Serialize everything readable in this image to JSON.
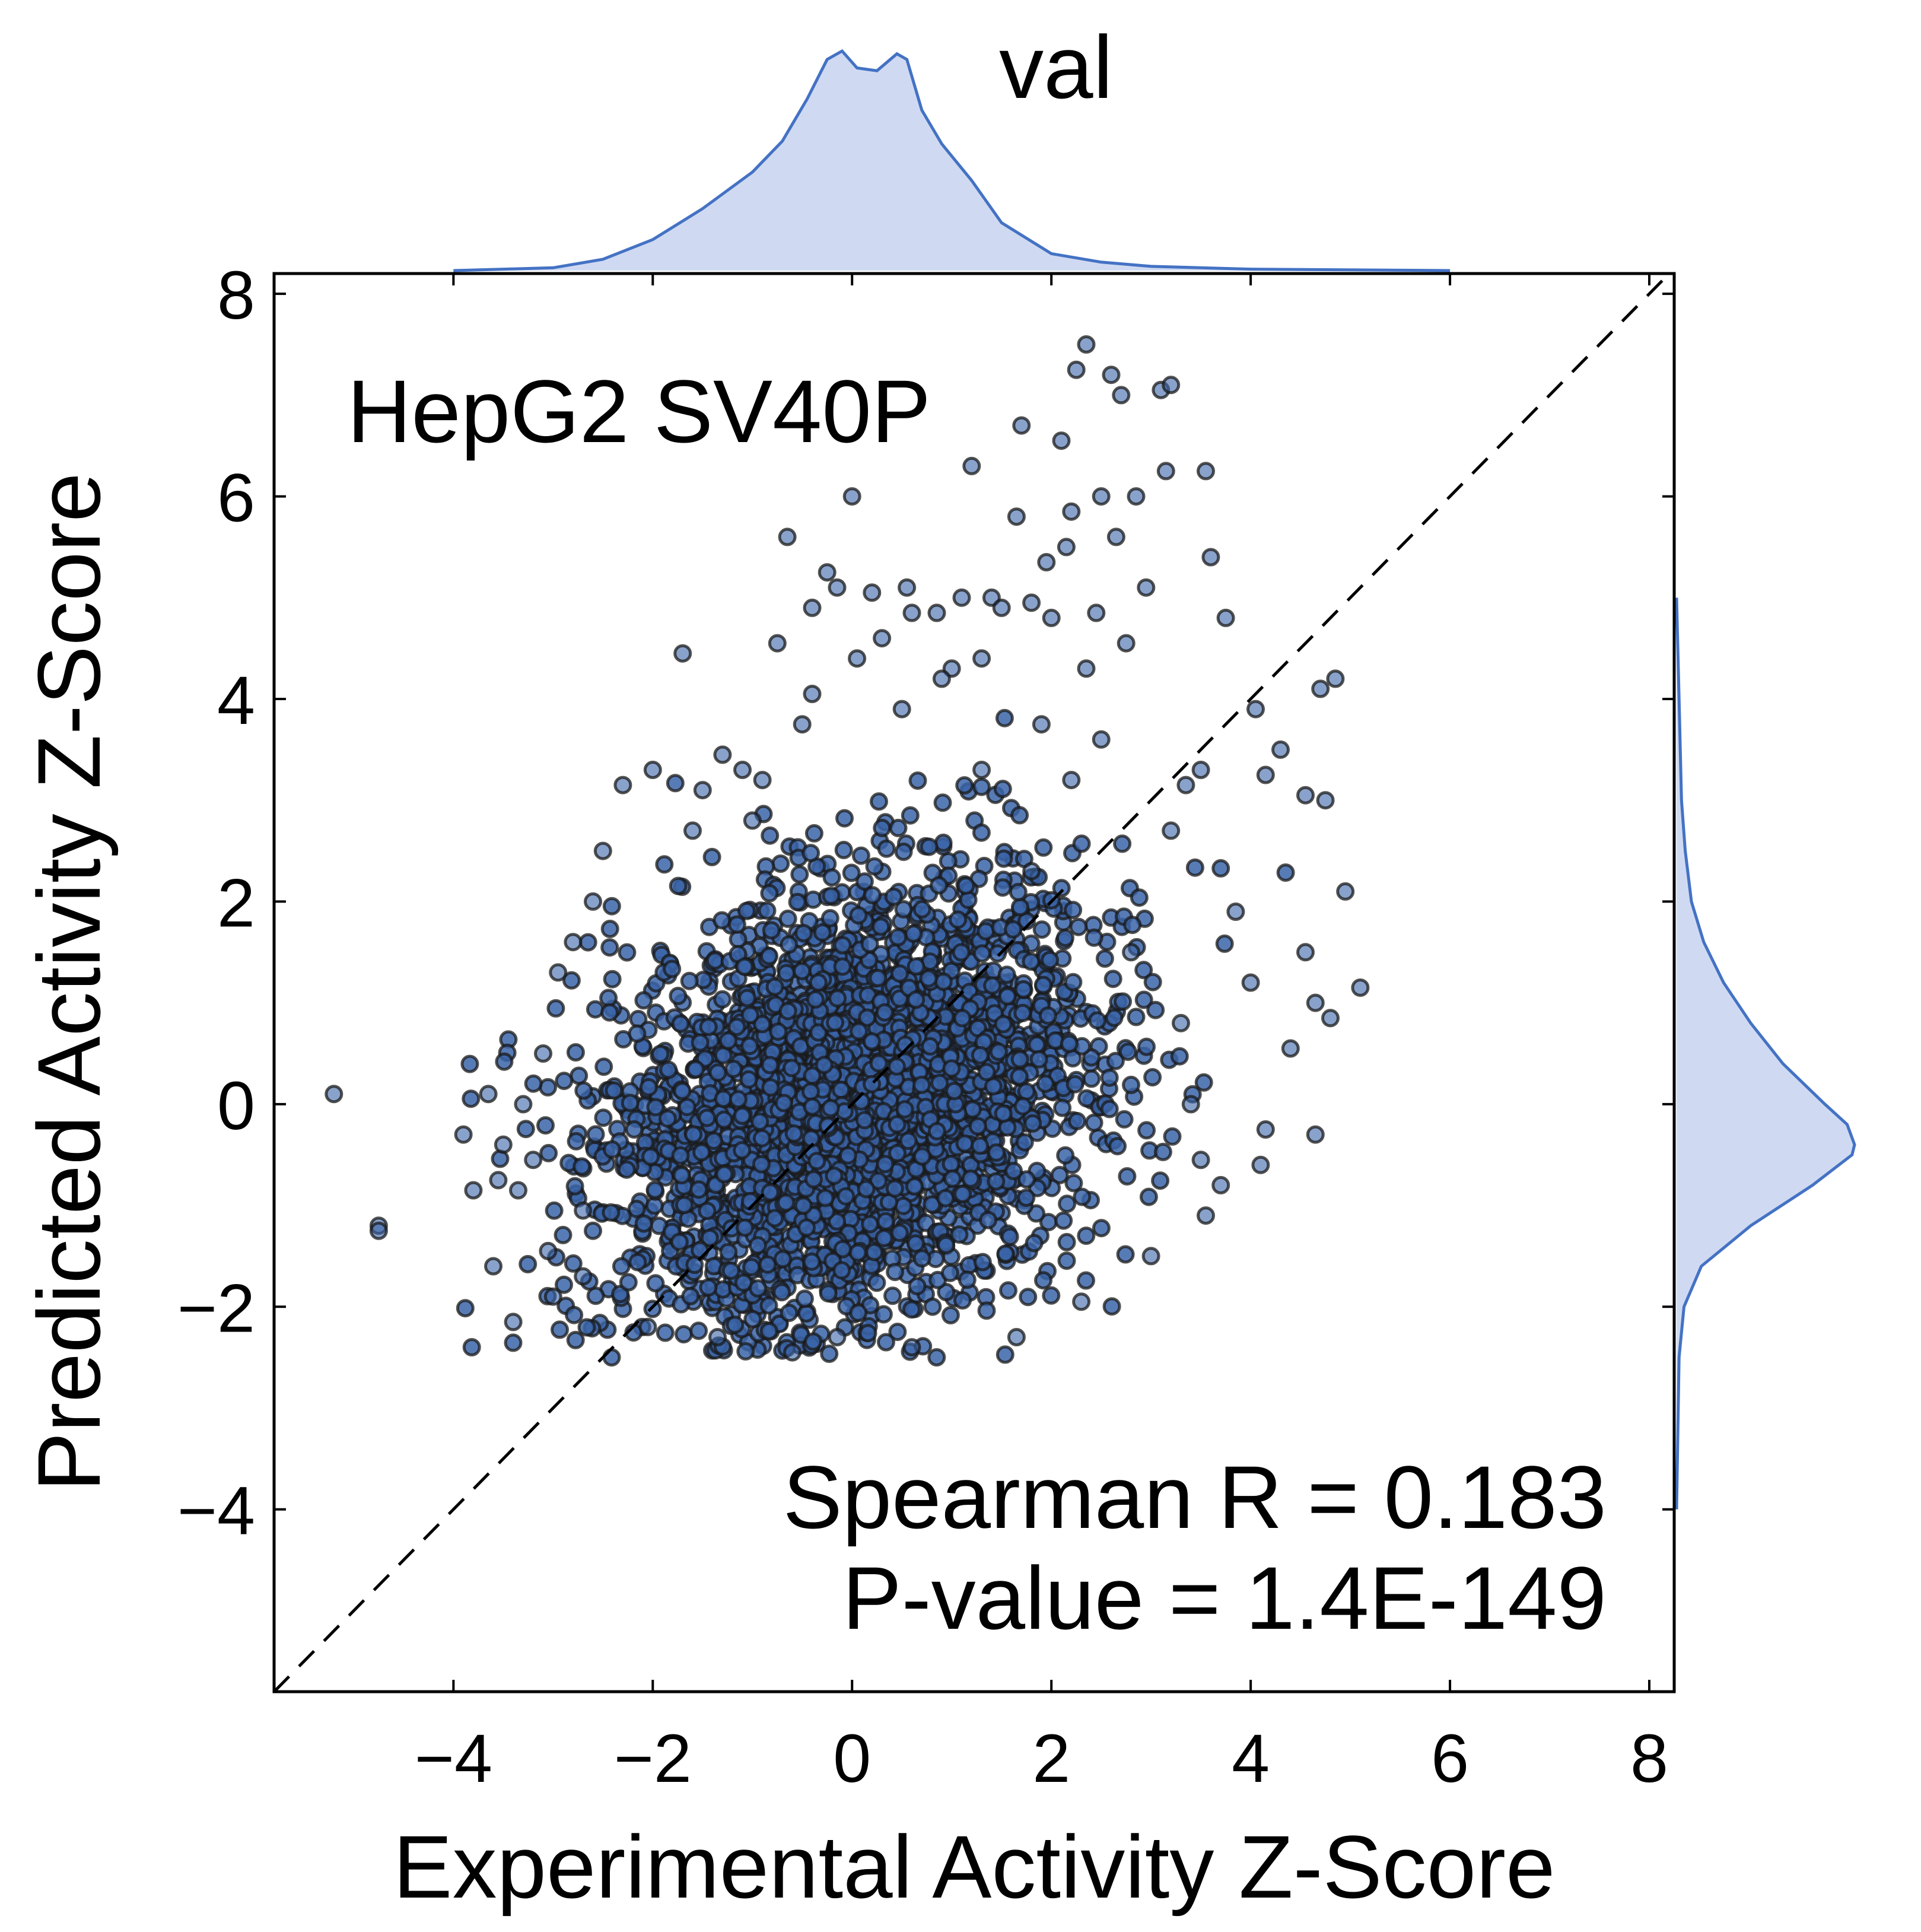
{
  "chart_data": {
    "type": "scatter",
    "title": "val",
    "annotation": "HepG2 SV40P",
    "stats": {
      "line1": "Spearman R = 0.183",
      "line2": "P-value = 1.4E-149"
    },
    "xlabel": "Experimental Activity Z-Score",
    "ylabel": "Predicted Activity Z-Score",
    "xlim": [
      -5.8,
      8.25
    ],
    "ylim": [
      -5.8,
      8.2
    ],
    "xticks": [
      -4,
      -2,
      0,
      2,
      4,
      6,
      8
    ],
    "yticks": [
      -4,
      -2,
      0,
      2,
      4,
      6,
      8
    ],
    "xtick_labels": [
      "−4",
      "−2",
      "0",
      "2",
      "4",
      "6",
      "8"
    ],
    "ytick_labels": [
      "−4",
      "−2",
      "0",
      "2",
      "4",
      "6",
      "8"
    ],
    "identity_line": true,
    "point_color": "#3a64a8",
    "point_edge_color": "#1a1a1a",
    "kde_fill_color": "#cfdaf2",
    "kde_line_color": "#4472c4",
    "x_marginal_kde": {
      "x": [
        -4.0,
        -3.0,
        -2.5,
        -2.0,
        -1.5,
        -1.0,
        -0.7,
        -0.45,
        -0.25,
        -0.1,
        0.05,
        0.25,
        0.45,
        0.55,
        0.7,
        0.9,
        1.2,
        1.5,
        2.0,
        2.5,
        3.0,
        4.0,
        6.0
      ],
      "density": [
        0.0,
        0.01,
        0.04,
        0.11,
        0.22,
        0.35,
        0.46,
        0.61,
        0.75,
        0.78,
        0.72,
        0.71,
        0.77,
        0.75,
        0.57,
        0.45,
        0.32,
        0.17,
        0.06,
        0.03,
        0.015,
        0.005,
        0.0
      ]
    },
    "y_marginal_kde": {
      "y": [
        -4.0,
        -2.5,
        -2.0,
        -1.6,
        -1.2,
        -0.8,
        -0.5,
        -0.4,
        -0.2,
        0.0,
        0.4,
        0.8,
        1.2,
        1.6,
        2.0,
        2.5,
        3.0,
        4.0,
        5.0
      ],
      "density": [
        0.0,
        0.01,
        0.03,
        0.1,
        0.3,
        0.55,
        0.71,
        0.72,
        0.69,
        0.6,
        0.43,
        0.3,
        0.19,
        0.11,
        0.06,
        0.035,
        0.02,
        0.01,
        0.0
      ]
    },
    "points": [
      [
        -5.2,
        0.1
      ],
      [
        -4.75,
        -1.2
      ],
      [
        -4.75,
        -1.25
      ],
      [
        -3.9,
        -0.3
      ],
      [
        -3.8,
        -0.85
      ],
      [
        -3.65,
        0.1
      ],
      [
        -3.6,
        -1.6
      ],
      [
        -3.55,
        -0.75
      ],
      [
        -3.4,
        -2.15
      ],
      [
        -3.3,
        0.0
      ],
      [
        -3.2,
        -0.55
      ],
      [
        -3.1,
        0.5
      ],
      [
        -3.0,
        -1.9
      ],
      [
        -2.95,
        1.3
      ],
      [
        -2.8,
        1.6
      ],
      [
        -2.7,
        -1.05
      ],
      [
        -2.6,
        2.0
      ],
      [
        -2.5,
        2.5
      ],
      [
        -2.3,
        3.15
      ],
      [
        -2.0,
        3.3
      ],
      [
        -1.7,
        4.45
      ],
      [
        -1.6,
        2.7
      ],
      [
        -1.5,
        3.1
      ],
      [
        -1.3,
        3.45
      ],
      [
        -1.1,
        3.3
      ],
      [
        -0.9,
        3.2
      ],
      [
        -0.65,
        5.6
      ],
      [
        -0.5,
        3.75
      ],
      [
        -0.4,
        4.05
      ],
      [
        -0.25,
        5.25
      ],
      [
        -0.15,
        5.1
      ],
      [
        0.0,
        6.0
      ],
      [
        0.05,
        4.4
      ],
      [
        0.3,
        4.6
      ],
      [
        0.5,
        3.9
      ],
      [
        0.55,
        5.1
      ],
      [
        0.6,
        4.85
      ],
      [
        0.85,
        4.85
      ],
      [
        1.0,
        4.3
      ],
      [
        1.1,
        5.0
      ],
      [
        1.2,
        6.3
      ],
      [
        1.3,
        4.4
      ],
      [
        1.4,
        5.0
      ],
      [
        1.5,
        4.9
      ],
      [
        1.65,
        5.8
      ],
      [
        1.7,
        6.7
      ],
      [
        1.8,
        4.95
      ],
      [
        1.9,
        3.75
      ],
      [
        2.0,
        4.8
      ],
      [
        2.1,
        6.55
      ],
      [
        2.15,
        5.5
      ],
      [
        2.2,
        5.85
      ],
      [
        2.25,
        7.25
      ],
      [
        2.35,
        7.5
      ],
      [
        2.35,
        4.3
      ],
      [
        2.5,
        6.0
      ],
      [
        2.6,
        7.2
      ],
      [
        2.65,
        5.6
      ],
      [
        2.7,
        7.0
      ],
      [
        2.75,
        4.55
      ],
      [
        2.85,
        6.0
      ],
      [
        2.95,
        5.1
      ],
      [
        3.1,
        7.05
      ],
      [
        3.15,
        6.25
      ],
      [
        3.2,
        7.1
      ],
      [
        3.35,
        3.15
      ],
      [
        3.5,
        3.3
      ],
      [
        3.55,
        6.25
      ],
      [
        3.6,
        5.4
      ],
      [
        3.75,
        4.8
      ],
      [
        3.85,
        1.9
      ],
      [
        4.0,
        1.2
      ],
      [
        4.05,
        3.9
      ],
      [
        4.15,
        3.25
      ],
      [
        4.3,
        3.5
      ],
      [
        4.4,
        0.55
      ],
      [
        4.55,
        1.5
      ],
      [
        4.55,
        3.05
      ],
      [
        4.65,
        1.0
      ],
      [
        4.7,
        4.1
      ],
      [
        4.75,
        3.0
      ],
      [
        4.8,
        0.85
      ],
      [
        4.85,
        4.2
      ],
      [
        4.95,
        2.1
      ],
      [
        5.1,
        1.15
      ],
      [
        4.65,
        -0.3
      ],
      [
        4.15,
        -0.25
      ],
      [
        4.1,
        -0.6
      ],
      [
        3.5,
        -0.55
      ],
      [
        3.55,
        -1.1
      ],
      [
        3.0,
        -1.5
      ],
      [
        2.3,
        -1.95
      ],
      [
        1.65,
        -2.3
      ],
      [
        0.6,
        -2.4
      ],
      [
        -0.15,
        -2.3
      ],
      [
        -0.6,
        -2.45
      ],
      [
        -1.35,
        -2.3
      ],
      [
        -2.05,
        -2.2
      ],
      [
        -2.7,
        -1.7
      ],
      [
        -3.05,
        -1.45
      ],
      [
        2.8,
        1.5
      ],
      [
        3.2,
        2.7
      ],
      [
        3.4,
        0.0
      ],
      [
        2.2,
        3.2
      ],
      [
        2.5,
        3.6
      ],
      [
        1.3,
        3.3
      ],
      [
        0.9,
        4.2
      ],
      [
        -0.4,
        4.9
      ],
      [
        -1.0,
        2.8
      ],
      [
        1.8,
        2.3
      ],
      [
        3.7,
        -0.8
      ],
      [
        3.3,
        0.8
      ],
      [
        -3.35,
        -0.85
      ],
      [
        -3.5,
        -0.4
      ],
      [
        2.45,
        4.85
      ],
      [
        1.95,
        5.35
      ],
      [
        0.2,
        5.05
      ],
      [
        -0.75,
        4.55
      ]
    ],
    "density_cloud": {
      "center": [
        0.0,
        0.0
      ],
      "x_std": 1.15,
      "y_std": 1.05,
      "correlation": 0.25,
      "n_points": 3200
    }
  }
}
